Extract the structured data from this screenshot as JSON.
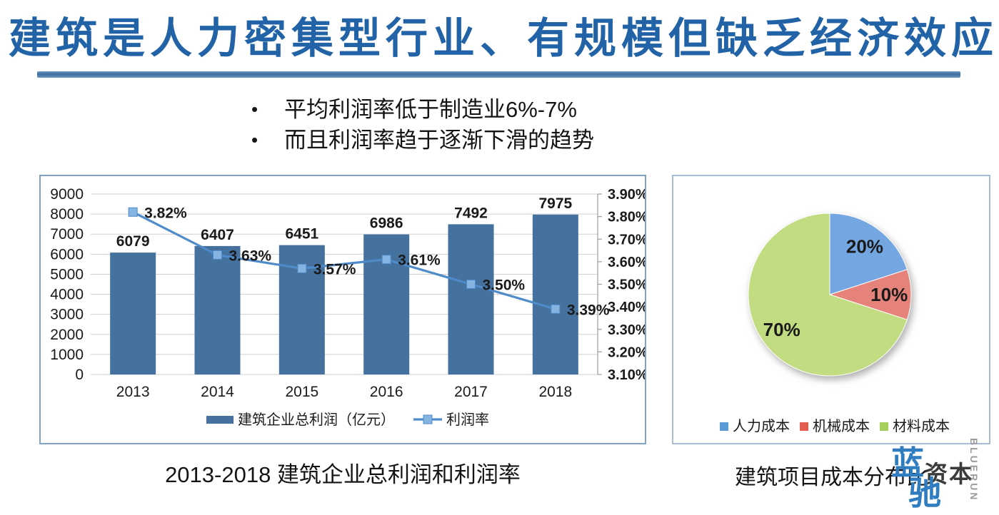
{
  "title": "建筑是人力密集型行业、有规模但缺乏经济效应",
  "bullets": [
    "平均利润率低于制造业6%-7%",
    "而且利润率趋于逐渐下滑的趋势"
  ],
  "watermark": {
    "blue_top": "蓝",
    "blue_bottom": "驰",
    "suffix": "资本",
    "vertical_text": "BLUERUN"
  },
  "colors": {
    "title_blue": "#2163a6",
    "bar": "#44719E",
    "line": "#4E8BC8",
    "marker_fill": "#85B4E2",
    "grid": "#cfcfcf",
    "axis": "#9e9e9e",
    "label": "#1a1a1a",
    "pie_slices": [
      "#74A7E2",
      "#E5827A",
      "#C2DC82"
    ],
    "pie_legend": [
      "#5A9BD7",
      "#E25C50",
      "#A5CF5C"
    ]
  },
  "chart_data": [
    {
      "type": "bar",
      "subtype": "combo-bar-line",
      "title": "2013-2018 建筑企业总利润和利润率",
      "categories": [
        "2013",
        "2014",
        "2015",
        "2016",
        "2017",
        "2018"
      ],
      "series": [
        {
          "name": "建筑企业总利润（亿元）",
          "type": "bar",
          "axis": "left",
          "values": [
            6079,
            6407,
            6451,
            6986,
            7492,
            7975
          ],
          "value_labels": [
            "6079",
            "6407",
            "6451",
            "6986",
            "7492",
            "7975"
          ]
        },
        {
          "name": "利润率",
          "type": "line",
          "axis": "right",
          "values": [
            3.82,
            3.63,
            3.57,
            3.61,
            3.5,
            3.39
          ],
          "value_labels": [
            "3.82%",
            "3.63%",
            "3.57%",
            "3.61%",
            "3.50%",
            "3.39%"
          ]
        }
      ],
      "left_axis": {
        "min": 0,
        "max": 9000,
        "step": 1000
      },
      "right_axis": {
        "min": 3.1,
        "max": 3.9,
        "step": 0.1,
        "format": "percent2"
      },
      "grid": true,
      "legend_position": "bottom"
    },
    {
      "type": "pie",
      "title": "建筑项目成本分布比",
      "labels": [
        "人力成本",
        "机械成本",
        "材料成本"
      ],
      "values": [
        20,
        10,
        70
      ],
      "value_labels": [
        "20%",
        "10%",
        "70%"
      ],
      "start_angle_deg": 0,
      "direction": "clockwise",
      "legend_position": "bottom"
    }
  ]
}
